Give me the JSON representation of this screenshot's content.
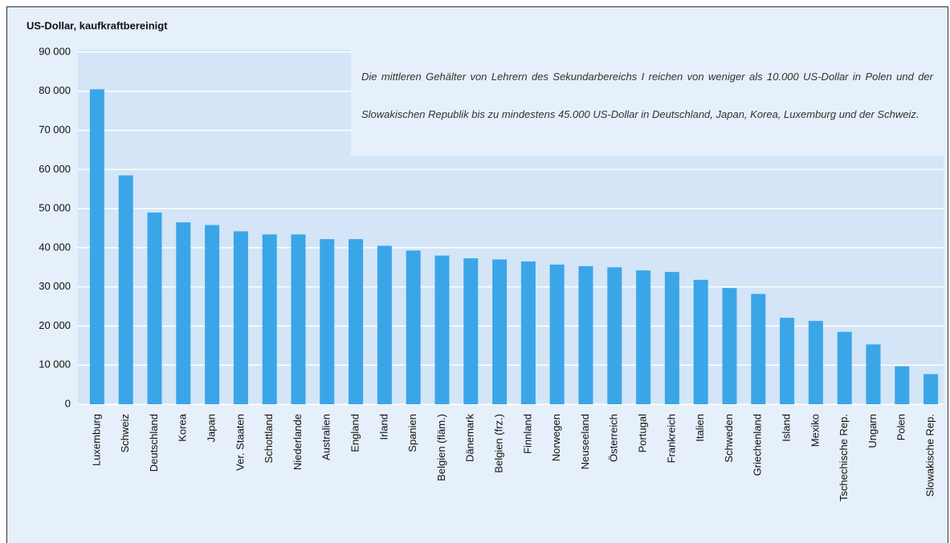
{
  "chart_data": {
    "type": "bar",
    "y_label": "US-Dollar, kaufkraftbereinigt",
    "annotation": "Die mittleren Gehälter von Lehrern des Sekundarbereichs I reichen von weniger als 10.000 US-Dollar in Polen und der Slowakischen Republik bis zu mindestens 45.000 US-Dollar in Deutschland, Japan, Korea, Luxemburg und der Schweiz.",
    "categories": [
      "Luxemburg",
      "Schweiz",
      "Deutschland",
      "Korea",
      "Japan",
      "Ver. Staaten",
      "Schottland",
      "Niederlande",
      "Australien",
      "England",
      "Irland",
      "Spanien",
      "Belgien (fläm.)",
      "Dänemark",
      "Belgien (frz.)",
      "Finnland",
      "Norwegen",
      "Neuseeland",
      "Österreich",
      "Portugal",
      "Frankreich",
      "Italien",
      "Schweden",
      "Griechenland",
      "Island",
      "Mexiko",
      "Tschechische Rep.",
      "Ungarn",
      "Polen",
      "Slowakische Rep."
    ],
    "values": [
      80500,
      58500,
      49000,
      46500,
      45800,
      44200,
      43400,
      43400,
      42200,
      42200,
      40500,
      39300,
      38000,
      37300,
      37000,
      36500,
      35700,
      35300,
      35000,
      34200,
      33800,
      31800,
      29700,
      28200,
      22100,
      21300,
      18500,
      15300,
      9700,
      7700
    ],
    "color": "#3aa6e8",
    "ylim": [
      0,
      90000
    ],
    "yticks": [
      0,
      {
        "value": 10000,
        "label": "10 000"
      },
      {
        "value": 20000,
        "label": "20 000"
      },
      {
        "value": 30000,
        "label": "30 000"
      },
      {
        "value": 40000,
        "label": "40 000"
      },
      {
        "value": 50000,
        "label": "50 000"
      },
      {
        "value": 60000,
        "label": "60 000"
      },
      {
        "value": 70000,
        "label": "70 000"
      },
      {
        "value": 80000,
        "label": "80 000"
      },
      {
        "value": 90000,
        "label": "90 000"
      }
    ],
    "grid": true
  }
}
